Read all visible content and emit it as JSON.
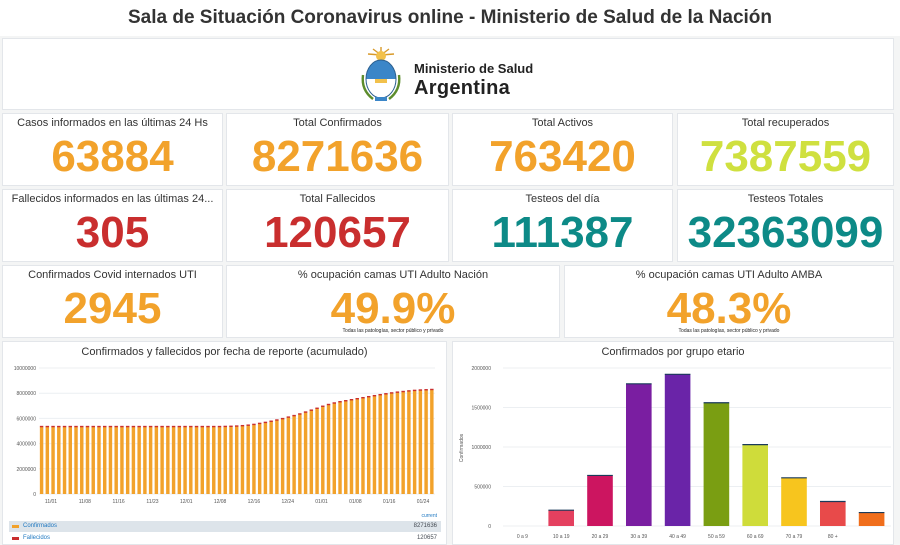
{
  "page_title": "Sala de Situación Coronavirus online - Ministerio de Salud de la Nación",
  "logo": {
    "line1": "Ministerio de Salud",
    "line2": "Argentina"
  },
  "stats_row1": [
    {
      "title": "Casos informados en las últimas 24 Hs",
      "value": "63884",
      "color": "#f2a22b"
    },
    {
      "title": "Total Confirmados",
      "value": "8271636",
      "color": "#f2a22b"
    },
    {
      "title": "Total Activos",
      "value": "763420",
      "color": "#f2a22b"
    },
    {
      "title": "Total recuperados",
      "value": "7387559",
      "color": "#cfe03f"
    }
  ],
  "stats_row2": [
    {
      "title": "Fallecidos informados en las últimas 24...",
      "value": "305",
      "color": "#c92e2e"
    },
    {
      "title": "Total Fallecidos",
      "value": "120657",
      "color": "#c92e2e"
    },
    {
      "title": "Testeos del día",
      "value": "111387",
      "color": "#0d8a87"
    },
    {
      "title": "Testeos Totales",
      "value": "32363099",
      "color": "#0d8a87"
    }
  ],
  "stats_row3": [
    {
      "title": "Confirmados Covid internados UTI",
      "value": "2945",
      "color": "#f2a22b"
    },
    {
      "title": "% ocupación camas UTI Adulto Nación",
      "value": "49.9%",
      "color": "#f2a22b",
      "note": "Todas las patologías, sector público y privado"
    },
    {
      "title": "% ocupación camas UTI Adulto AMBA",
      "value": "48.3%",
      "color": "#f2a22b",
      "note": "Todas las patologías, sector público y privado"
    }
  ],
  "chart_data": [
    {
      "type": "bar",
      "title": "Confirmados y fallecidos por fecha de reporte (acumulado)",
      "xlabel": "",
      "ylabel": "",
      "ylim": [
        0,
        10000000
      ],
      "y_ticks": [
        "0",
        "2000000",
        "4000000",
        "6000000",
        "8000000",
        "10000000"
      ],
      "x_ticks": [
        "11/01",
        "11/08",
        "11/16",
        "11/23",
        "12/01",
        "12/08",
        "12/16",
        "12/24",
        "01/01",
        "01/08",
        "01/16",
        "01/24"
      ],
      "grid": true,
      "legend_header": "current",
      "series": [
        {
          "name": "Confirmados",
          "color": "#f2a22b",
          "current": "8271636",
          "values": [
            5330000,
            5330000,
            5330000,
            5330000,
            5330000,
            5330000,
            5330000,
            5330000,
            5330000,
            5330000,
            5330000,
            5330000,
            5330000,
            5330000,
            5330000,
            5330000,
            5330000,
            5330000,
            5330000,
            5330000,
            5330000,
            5330000,
            5330000,
            5330000,
            5330000,
            5330000,
            5330000,
            5330000,
            5330000,
            5330000,
            5330000,
            5330000,
            5340000,
            5350000,
            5370000,
            5400000,
            5440000,
            5500000,
            5580000,
            5660000,
            5750000,
            5850000,
            5960000,
            6080000,
            6200000,
            6330000,
            6480000,
            6630000,
            6780000,
            6940000,
            7080000,
            7200000,
            7300000,
            7380000,
            7460000,
            7540000,
            7620000,
            7700000,
            7780000,
            7860000,
            7930000,
            8000000,
            8060000,
            8110000,
            8160000,
            8200000,
            8230000,
            8250000,
            8271636
          ]
        },
        {
          "name": "Fallecidos",
          "color": "#c92e2e",
          "current": "120657"
        }
      ]
    },
    {
      "type": "bar",
      "title": "Confirmados por grupo etario",
      "ylabel": "Confirmados",
      "ylim": [
        0,
        2000000
      ],
      "y_ticks": [
        "0",
        "500000",
        "1000000",
        "1500000",
        "2000000"
      ],
      "categories": [
        "0 a 9",
        "10 a 19",
        "20 a 29",
        "30 a 39",
        "40 a 49",
        "50 a 59",
        "60 a 69",
        "70 a 79",
        "80 +",
        ""
      ],
      "values": [
        0,
        200000,
        640000,
        1800000,
        1920000,
        1560000,
        1030000,
        610000,
        310000,
        170000
      ],
      "colors": [
        "#e4405f",
        "#e4405f",
        "#cc1560",
        "#7a1ea1",
        "#6a24a8",
        "#7a9e12",
        "#cfdc3a",
        "#f7c51e",
        "#e84a4a",
        "#f06e1c"
      ]
    }
  ]
}
